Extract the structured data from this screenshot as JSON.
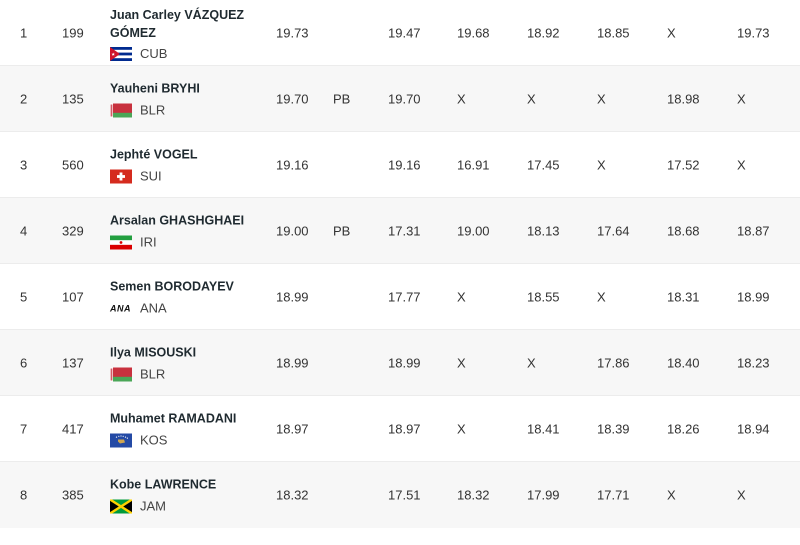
{
  "rows": [
    {
      "rank": "1",
      "bib": "199",
      "name": "Juan Carley VÁZQUEZ GÓMEZ",
      "flag": "cuba-flag",
      "country": "CUB",
      "mark": "19.73",
      "pb": "",
      "attempts": [
        "19.47",
        "19.68",
        "18.92",
        "18.85",
        "X",
        "19.73"
      ]
    },
    {
      "rank": "2",
      "bib": "135",
      "name": "Yauheni BRYHI",
      "flag": "belarus-flag",
      "country": "BLR",
      "mark": "19.70",
      "pb": "PB",
      "attempts": [
        "19.70",
        "X",
        "X",
        "X",
        "18.98",
        "X"
      ]
    },
    {
      "rank": "3",
      "bib": "560",
      "name": "Jephté VOGEL",
      "flag": "switzerland-flag",
      "country": "SUI",
      "mark": "19.16",
      "pb": "",
      "attempts": [
        "19.16",
        "16.91",
        "17.45",
        "X",
        "17.52",
        "X"
      ]
    },
    {
      "rank": "4",
      "bib": "329",
      "name": "Arsalan GHASHGHAEI",
      "flag": "iran-flag",
      "country": "IRI",
      "mark": "19.00",
      "pb": "PB",
      "attempts": [
        "17.31",
        "19.00",
        "18.13",
        "17.64",
        "18.68",
        "18.87"
      ]
    },
    {
      "rank": "5",
      "bib": "107",
      "name": "Semen BORODAYEV",
      "flag": "ana-logo",
      "flag_text": "ANA",
      "country": "ANA",
      "mark": "18.99",
      "pb": "",
      "attempts": [
        "17.77",
        "X",
        "18.55",
        "X",
        "18.31",
        "18.99"
      ]
    },
    {
      "rank": "6",
      "bib": "137",
      "name": "Ilya MISOUSKI",
      "flag": "belarus-flag",
      "country": "BLR",
      "mark": "18.99",
      "pb": "",
      "attempts": [
        "18.99",
        "X",
        "X",
        "17.86",
        "18.40",
        "18.23"
      ]
    },
    {
      "rank": "7",
      "bib": "417",
      "name": "Muhamet RAMADANI",
      "flag": "kosovo-flag",
      "country": "KOS",
      "mark": "18.97",
      "pb": "",
      "attempts": [
        "18.97",
        "X",
        "18.41",
        "18.39",
        "18.26",
        "18.94"
      ]
    },
    {
      "rank": "8",
      "bib": "385",
      "name": "Kobe LAWRENCE",
      "flag": "jamaica-flag",
      "country": "JAM",
      "mark": "18.32",
      "pb": "",
      "attempts": [
        "17.51",
        "18.32",
        "17.99",
        "17.71",
        "X",
        "X"
      ]
    }
  ]
}
